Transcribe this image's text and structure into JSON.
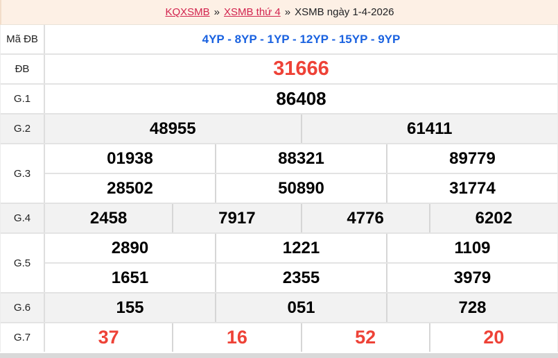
{
  "breadcrumb": {
    "links": [
      {
        "label": "KQXSMB"
      },
      {
        "label": "XSMB thứ 4"
      }
    ],
    "separator": "»",
    "current": "XSMB ngày 1-4-2026"
  },
  "table": {
    "rows": [
      {
        "label": "Mã ĐB",
        "style": "code",
        "shaded": false,
        "lines": [
          [
            "4YP - 8YP - 1YP - 12YP - 15YP - 9YP"
          ]
        ]
      },
      {
        "label": "ĐB",
        "style": "jackpot",
        "shaded": false,
        "lines": [
          [
            "31666"
          ]
        ]
      },
      {
        "label": "G.1",
        "style": "big",
        "shaded": false,
        "lines": [
          [
            "86408"
          ]
        ]
      },
      {
        "label": "G.2",
        "style": "num",
        "shaded": true,
        "lines": [
          [
            "48955",
            "61411"
          ]
        ]
      },
      {
        "label": "G.3",
        "style": "num",
        "shaded": false,
        "lines": [
          [
            "01938",
            "88321",
            "89779"
          ],
          [
            "28502",
            "50890",
            "31774"
          ]
        ]
      },
      {
        "label": "G.4",
        "style": "num",
        "shaded": true,
        "lines": [
          [
            "2458",
            "7917",
            "4776",
            "6202"
          ]
        ]
      },
      {
        "label": "G.5",
        "style": "num",
        "shaded": false,
        "lines": [
          [
            "2890",
            "1221",
            "1109"
          ],
          [
            "1651",
            "2355",
            "3979"
          ]
        ]
      },
      {
        "label": "G.6",
        "style": "num",
        "shaded": true,
        "lines": [
          [
            "155",
            "051",
            "728"
          ]
        ]
      },
      {
        "label": "G.7",
        "style": "red",
        "shaded": false,
        "lines": [
          [
            "37",
            "16",
            "52",
            "20"
          ]
        ]
      }
    ]
  },
  "colors": {
    "header_bg": "#fdf0e5",
    "shaded_row_bg": "#f2f2f2",
    "link_red": "#d2234e",
    "value_red": "#ee4237",
    "code_blue": "#1a62e0",
    "number_black": "#000000",
    "border_gray": "#dedede",
    "bottom_strip": "#d9d9d9"
  }
}
